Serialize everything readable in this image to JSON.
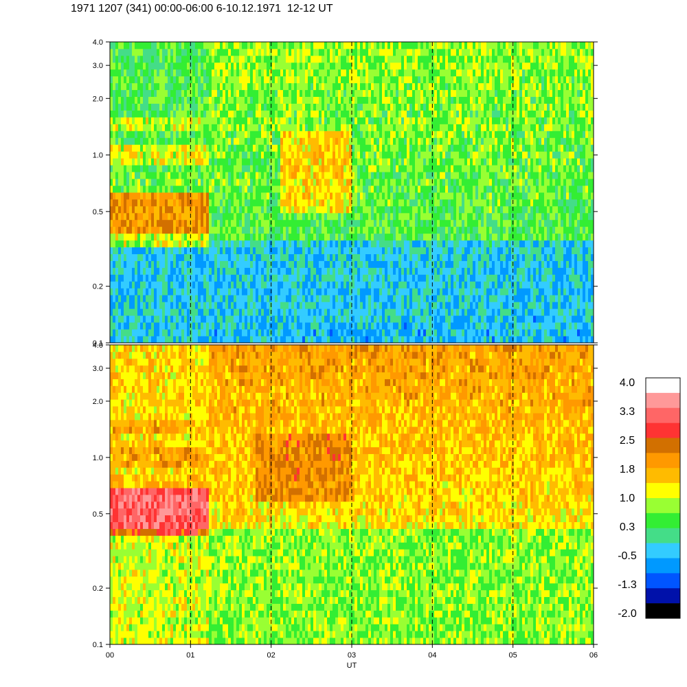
{
  "title": "1971 1207 (341) 00:00-06:00 6-10.12.1971  12-12 UT",
  "chart_data": [
    {
      "type": "heatmap",
      "panel": "upper",
      "x_range": [
        0,
        6
      ],
      "y_scale": "log",
      "ylim": [
        0.1,
        4.0
      ],
      "y_ticks": [
        "0.1",
        "0.2",
        "0.5",
        "1.0",
        "2.0",
        "3.0",
        "4.0"
      ],
      "y_tick_values": [
        0.1,
        0.2,
        0.5,
        1.0,
        2.0,
        3.0,
        4.0
      ],
      "dashed_time_markers": [
        1,
        2,
        3,
        4,
        5
      ],
      "grid": false
    },
    {
      "type": "heatmap",
      "panel": "lower",
      "x_range": [
        0,
        6
      ],
      "y_scale": "log",
      "ylim": [
        0.1,
        4.0
      ],
      "y_ticks": [
        "0.1",
        "0.2",
        "0.5",
        "1.0",
        "2.0",
        "3.0",
        "4.0"
      ],
      "y_tick_values": [
        0.1,
        0.2,
        0.5,
        1.0,
        2.0,
        3.0,
        4.0
      ],
      "dashed_time_markers": [
        1,
        2,
        3,
        4,
        5
      ],
      "grid": false
    }
  ],
  "x_axis": {
    "label": "UT",
    "ticks": [
      "00",
      "01",
      "02",
      "03",
      "04",
      "05",
      "06"
    ],
    "tick_values": [
      0,
      1,
      2,
      3,
      4,
      5,
      6
    ]
  },
  "colorbar": {
    "labels": [
      "4.0",
      "3.3",
      "2.5",
      "1.8",
      "1.0",
      "0.3",
      "-0.5",
      "-1.3",
      "-2.0"
    ],
    "colors": [
      "#ffffff",
      "#ff9999",
      "#ff6666",
      "#ff3333",
      "#d27000",
      "#ff9900",
      "#ffbb00",
      "#ffff00",
      "#99ff33",
      "#33ee33",
      "#44dd88",
      "#33ccff",
      "#0099ff",
      "#0055ff",
      "#0011aa",
      "#000000"
    ]
  }
}
